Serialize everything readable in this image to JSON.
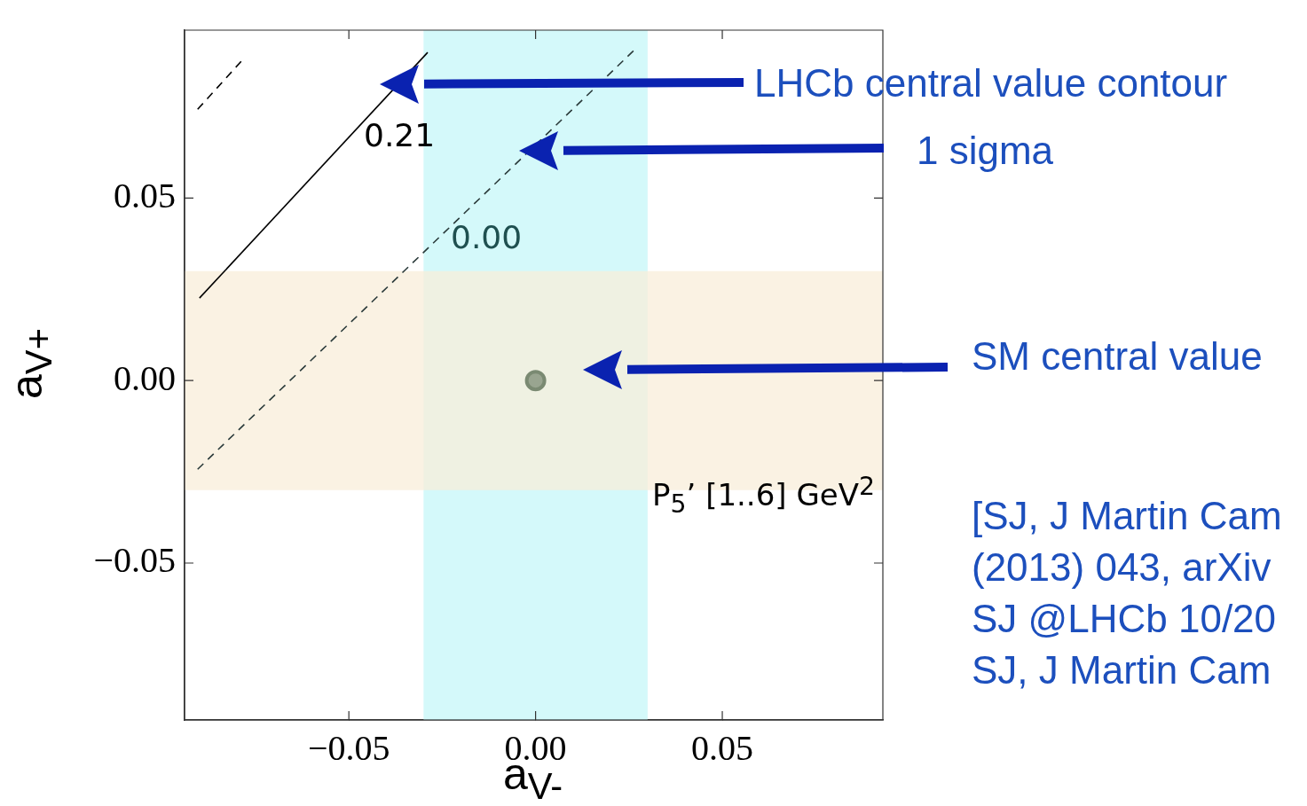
{
  "chart_data": {
    "type": "line",
    "xlabel": "a$_{V-}$",
    "ylabel": "a$_{V+}$",
    "xlim": [
      -0.094,
      0.093
    ],
    "ylim": [
      -0.093,
      0.096
    ],
    "xticks": [
      {
        "value": -0.05,
        "label": "−0.05"
      },
      {
        "value": 0,
        "label": "0.00"
      },
      {
        "value": 0.05,
        "label": "0.05"
      }
    ],
    "yticks": [
      {
        "value": -0.05,
        "label": "−0.05"
      },
      {
        "value": 0,
        "label": "0.00"
      },
      {
        "value": 0.05,
        "label": "0.05"
      }
    ],
    "grid": false,
    "legend": false,
    "marker": "none",
    "series": [
      {
        "color": "#000000",
        "line_style": "solid",
        "x": [
          -0.09,
          -0.0289
        ],
        "values": [
          0.0226,
          0.0899
        ]
      },
      {
        "color": "#2a3a3a",
        "line_style": "dashed",
        "x": [
          -0.0905,
          0.0265
        ],
        "values": [
          -0.0243,
          0.0906
        ]
      },
      {
        "color": "#000000",
        "line_style": "dashed",
        "x": [
          -0.0905,
          -0.078
        ],
        "values": [
          0.0743,
          0.0884
        ]
      },
      {
        "type": "scatter",
        "color": "#7a8a72",
        "marker": "circle",
        "x": [
          0.0
        ],
        "values": [
          0.0
        ]
      }
    ],
    "bands": [
      {
        "axis": "x",
        "from": -0.03,
        "to": 0.03,
        "color": "#c6f7f8"
      },
      {
        "axis": "y",
        "from": -0.03,
        "to": 0.03,
        "color": "#f8edd9"
      }
    ],
    "annotations": [
      "0.21",
      "0.00",
      "LHCb central value contour",
      "1 sigma",
      "SM central value",
      "P$_{5}$’  [1..6] GeV$^{2}$",
      "[SJ, J Martin Cam",
      "(2013) 043, arXiv",
      "SJ @LHCb 10/20",
      "SJ, J Martin Cam"
    ]
  }
}
